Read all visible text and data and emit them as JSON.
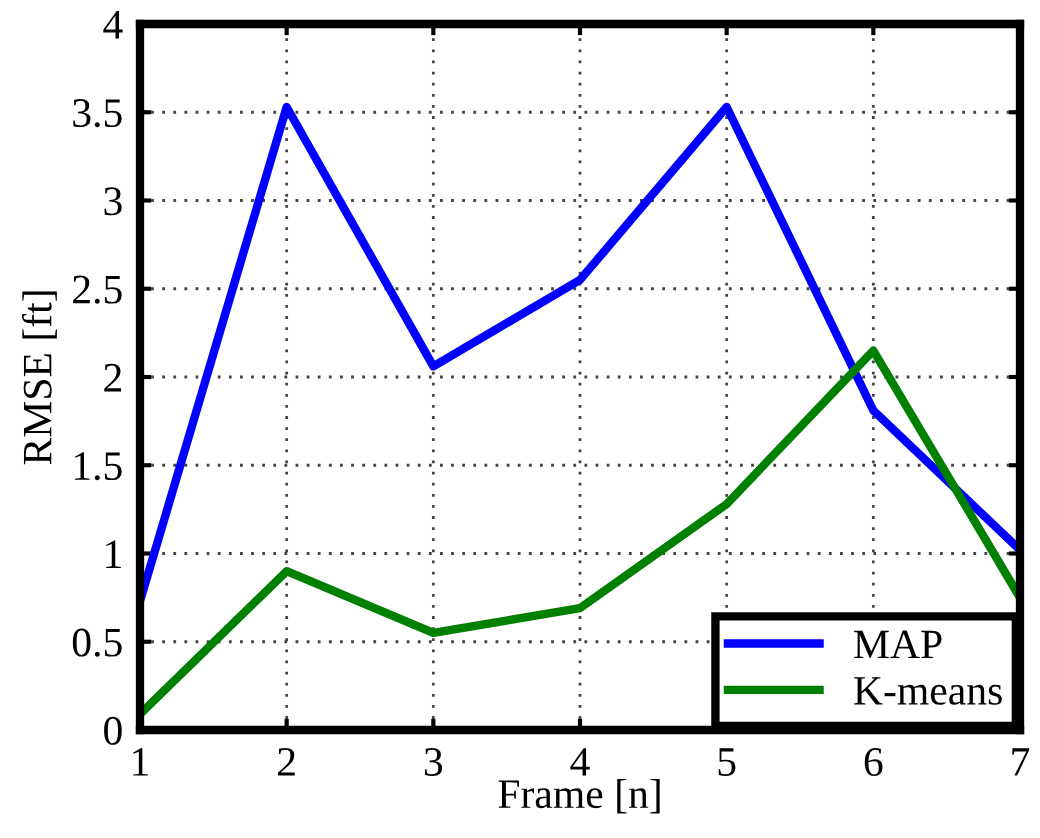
{
  "chart_data": {
    "type": "line",
    "xlabel": "Frame [n]",
    "ylabel": "RMSE [ft]",
    "x": [
      1,
      2,
      3,
      4,
      5,
      6,
      7
    ],
    "series": [
      {
        "name": "MAP",
        "color": "#0000ff",
        "values": [
          0.73,
          3.53,
          2.06,
          2.55,
          3.53,
          1.81,
          1.02
        ]
      },
      {
        "name": "K-means",
        "color": "#008000",
        "values": [
          0.09,
          0.9,
          0.55,
          0.69,
          1.28,
          2.15,
          0.75
        ]
      }
    ],
    "xlim": [
      1,
      7
    ],
    "xticks": [
      1,
      2,
      3,
      4,
      5,
      6,
      7
    ],
    "ylim": [
      0,
      4
    ],
    "yticks": [
      0,
      0.5,
      1,
      1.5,
      2,
      2.5,
      3,
      3.5,
      4
    ],
    "grid": true,
    "legend": "bottom right",
    "line_style": "solid",
    "marker": "none"
  }
}
